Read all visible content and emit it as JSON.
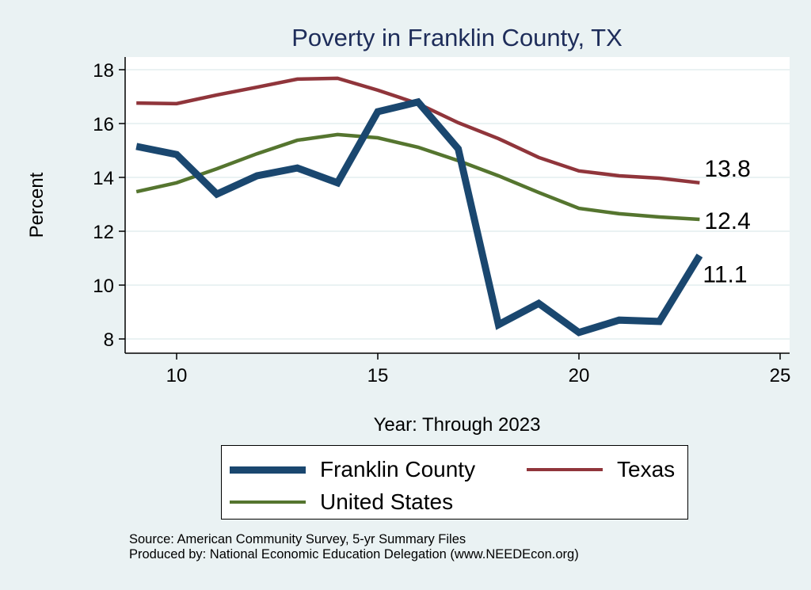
{
  "chart_data": {
    "type": "line",
    "title": "Poverty in Franklin County, TX",
    "xlabel": "Year: Through 2023",
    "ylabel": "Percent",
    "xlim": [
      8.7,
      25.2
    ],
    "ylim": [
      7.5,
      18.5
    ],
    "xticks": [
      10,
      15,
      20,
      25
    ],
    "yticks": [
      8,
      10,
      12,
      14,
      16,
      18
    ],
    "grid": true,
    "legend_position": "bottom",
    "x": [
      9,
      10,
      11,
      12,
      13,
      14,
      15,
      16,
      17,
      18,
      19,
      20,
      21,
      22,
      23
    ],
    "series": [
      {
        "name": "Franklin County",
        "color": "#1a476f",
        "width": 9,
        "values": [
          15.15,
          14.85,
          13.38,
          14.06,
          14.35,
          13.8,
          16.44,
          16.8,
          15.06,
          8.53,
          9.32,
          8.24,
          8.7,
          8.65,
          11.1
        ],
        "end_label": "11.1"
      },
      {
        "name": "Texas",
        "color": "#90353b",
        "width": 4.5,
        "values": [
          16.76,
          16.74,
          17.06,
          17.35,
          17.65,
          17.68,
          17.24,
          16.74,
          16.03,
          15.44,
          14.74,
          14.24,
          14.06,
          13.97,
          13.8
        ],
        "end_label": "13.8"
      },
      {
        "name": "United States",
        "color": "#55752f",
        "width": 4.5,
        "values": [
          13.47,
          13.8,
          14.32,
          14.88,
          15.38,
          15.59,
          15.47,
          15.12,
          14.62,
          14.06,
          13.44,
          12.85,
          12.65,
          12.53,
          12.44
        ],
        "end_label": "12.4"
      }
    ]
  },
  "notes": {
    "source": "Source: American Community Survey, 5-yr Summary Files",
    "produced": "Produced by: National Economic Education Delegation (www.NEEDEcon.org)"
  }
}
